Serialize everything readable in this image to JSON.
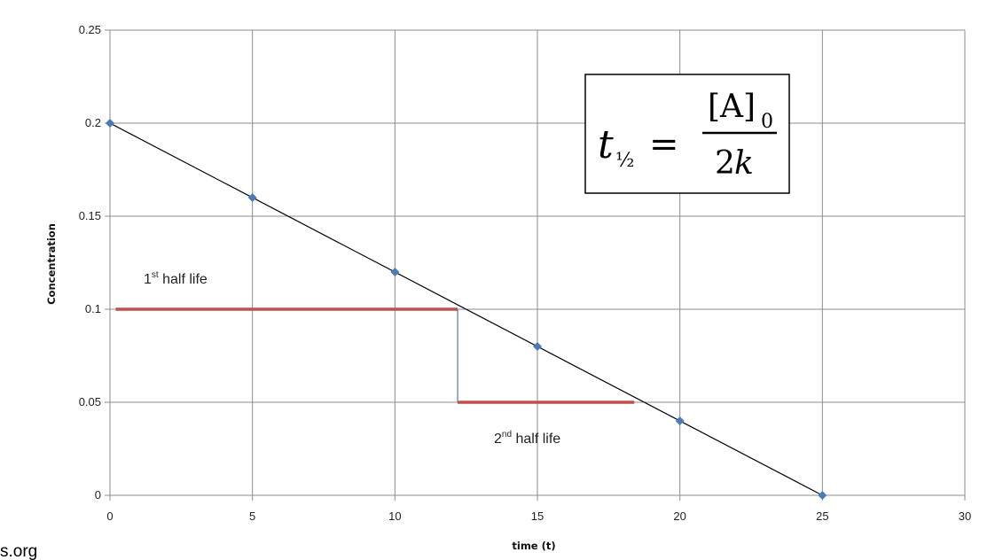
{
  "chart_data": {
    "type": "scatter",
    "xlabel": "time (t)",
    "ylabel": "Concentration",
    "xlim": [
      0,
      30
    ],
    "ylim": [
      0,
      0.25
    ],
    "x_ticks": [
      "0",
      "5",
      "10",
      "15",
      "20",
      "25",
      "30"
    ],
    "y_ticks": [
      "0",
      "0.05",
      "0.1",
      "0.15",
      "0.2",
      "0.25"
    ],
    "x_tick_values": [
      0,
      5,
      10,
      15,
      20,
      25,
      30
    ],
    "y_tick_values": [
      0,
      0.05,
      0.1,
      0.15,
      0.2,
      0.25
    ],
    "grid": true,
    "series": [
      {
        "x": [
          0,
          5,
          10,
          15,
          20,
          25
        ],
        "y": [
          0.2,
          0.16,
          0.12,
          0.08,
          0.04,
          0
        ],
        "color": "#4a7ab8"
      }
    ],
    "trendline": {
      "x": [
        0,
        25
      ],
      "y": [
        0.2,
        0
      ],
      "color": "#000000"
    },
    "half_life_markers": [
      {
        "label_base": "1",
        "label_sup": "st",
        "label_rest": " half life",
        "x_start": 0.2,
        "x_end": 12.2,
        "y": 0.1
      },
      {
        "label_base": "2",
        "label_sup": "nd",
        "label_rest": "  half life",
        "x_start": 12.2,
        "x_end": 18.4,
        "y": 0.05
      }
    ],
    "half_life_connector": {
      "x": 12.2,
      "y_top": 0.1,
      "y_bottom": 0.05
    },
    "marker_color": "#c0504d",
    "connector_color": "#4a7ab8",
    "formula": {
      "lhs": "t",
      "lhs_sub": "½",
      "equals": "=",
      "numerator": "[A]",
      "numerator_sub": "0",
      "denominator_num": "2",
      "denominator_var": "k"
    }
  },
  "watermark": "s.org"
}
